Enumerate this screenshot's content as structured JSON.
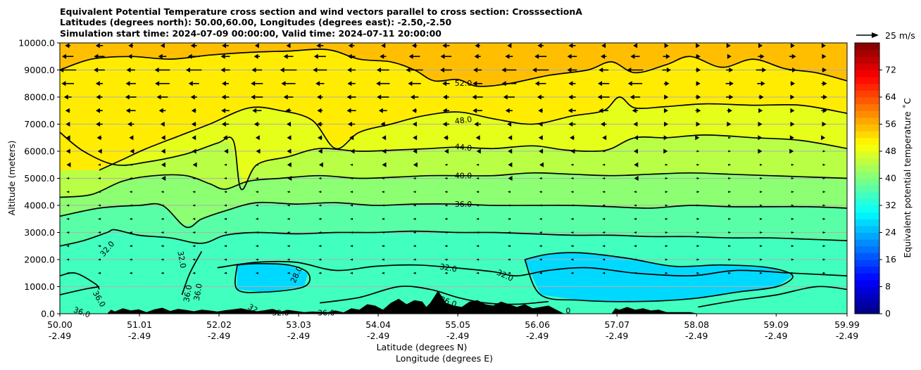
{
  "chart_data": {
    "type": "contour_cross_section",
    "title_lines": [
      "Equivalent Potential Temperature cross section and wind vectors parallel to cross section: CrosssectionA",
      "Latitudes (degrees north): 50.00,60.00, Longitudes (degrees east): -2.50,-2.50",
      "Simulation start time: 2024-07-09 00:00:00, Valid time: 2024-07-11 20:00:00"
    ],
    "ylabel": "Altitude (meters)",
    "xlabel_lat": "Latitude (degrees N)",
    "xlabel_lon": "Longitude (degrees E)",
    "ylim": [
      0,
      10000
    ],
    "yticks": [
      "0.0",
      "1000.0",
      "2000.0",
      "3000.0",
      "4000.0",
      "5000.0",
      "6000.0",
      "7000.0",
      "8000.0",
      "9000.0",
      "10000.0"
    ],
    "ytick_values": [
      0,
      1000,
      2000,
      3000,
      4000,
      5000,
      6000,
      7000,
      8000,
      9000,
      10000
    ],
    "xlim": [
      50.0,
      59.99
    ],
    "xtick_values": [
      50.0,
      51.01,
      52.02,
      53.03,
      54.04,
      55.05,
      56.06,
      57.07,
      58.08,
      59.09,
      59.99
    ],
    "xtick_lat": [
      "50.00",
      "51.01",
      "52.02",
      "53.03",
      "54.04",
      "55.05",
      "56.06",
      "57.07",
      "58.08",
      "59.09",
      "59.99"
    ],
    "xtick_lon": [
      "-2.49",
      "-2.49",
      "-2.49",
      "-2.49",
      "-2.49",
      "-2.49",
      "-2.49",
      "-2.49",
      "-2.49",
      "-2.49",
      "-2.49"
    ],
    "colorbar": {
      "label": "Equivalent potential temperature $^\\circ$C",
      "label_display": "Equivalent potential temperature ˚C",
      "ticks": [
        "0",
        "8",
        "16",
        "24",
        "32",
        "40",
        "48",
        "56",
        "64",
        "72"
      ],
      "tick_values": [
        0,
        8,
        16,
        24,
        32,
        40,
        48,
        56,
        64,
        72
      ],
      "range": [
        0,
        80
      ],
      "colormap": "jet"
    },
    "contour_levels": [
      28,
      32,
      36,
      40,
      44,
      48,
      52
    ],
    "contour_labels": [
      {
        "text": "52.0",
        "x": 55.12,
        "alt": 8520,
        "rot": 0
      },
      {
        "text": "48.0",
        "x": 55.12,
        "alt": 7150,
        "rot": -8
      },
      {
        "text": "44.0",
        "x": 55.12,
        "alt": 6150,
        "rot": 6
      },
      {
        "text": "40.0",
        "x": 55.12,
        "alt": 5100,
        "rot": 0
      },
      {
        "text": "36.0",
        "x": 55.12,
        "alt": 4050,
        "rot": 0
      },
      {
        "text": "32.0",
        "x": 54.93,
        "alt": 1700,
        "rot": 10
      },
      {
        "text": "32.0",
        "x": 55.65,
        "alt": 1420,
        "rot": 25
      },
      {
        "text": "28.0",
        "x": 53.0,
        "alt": 1450,
        "rot": -65
      },
      {
        "text": "36.0",
        "x": 54.93,
        "alt": 450,
        "rot": 20
      },
      {
        "text": "32.0",
        "x": 50.6,
        "alt": 2400,
        "rot": -50
      },
      {
        "text": "32.0",
        "x": 51.55,
        "alt": 2000,
        "rot": 80
      },
      {
        "text": "36.0",
        "x": 50.5,
        "alt": 550,
        "rot": 60
      },
      {
        "text": "36.0",
        "x": 50.28,
        "alt": 60,
        "rot": 20
      },
      {
        "text": "36.0",
        "x": 51.62,
        "alt": 750,
        "rot": -80
      },
      {
        "text": "36.0",
        "x": 51.75,
        "alt": 800,
        "rot": -80
      },
      {
        "text": "32",
        "x": 52.45,
        "alt": 200,
        "rot": 30
      },
      {
        "text": "32.0",
        "x": 52.8,
        "alt": 40,
        "rot": 0
      },
      {
        "text": "36.0",
        "x": 53.38,
        "alt": 40,
        "rot": 0
      },
      {
        "text": "0",
        "x": 56.45,
        "alt": 120,
        "rot": 0
      }
    ],
    "contours": [
      {
        "level": 52,
        "x": [
          50.0,
          50.4,
          50.9,
          51.4,
          51.9,
          52.4,
          52.9,
          53.4,
          53.8,
          54.2,
          54.5,
          54.75,
          55.05,
          55.3,
          55.7,
          56.2,
          56.7,
          57.0,
          57.3,
          57.7,
          58.0,
          58.4,
          58.8,
          59.2,
          59.6,
          59.99
        ],
        "alt": [
          9000,
          9400,
          9500,
          9400,
          9550,
          9650,
          9700,
          9750,
          9400,
          9300,
          9000,
          8600,
          8650,
          8400,
          8500,
          8800,
          9000,
          9300,
          8900,
          9200,
          9500,
          9100,
          9400,
          9050,
          8900,
          8600
        ]
      },
      {
        "level": 48,
        "x": [
          50.5,
          50.8,
          51.1,
          51.5,
          51.9,
          52.4,
          52.8,
          53.2,
          53.5,
          53.8,
          54.2,
          54.6,
          55.05,
          55.5,
          56.0,
          56.5,
          56.9,
          57.1,
          57.3,
          57.7,
          58.2,
          58.8,
          59.4,
          59.99
        ],
        "alt": [
          5300,
          5700,
          6100,
          6550,
          7000,
          7600,
          7500,
          7150,
          6100,
          6700,
          7000,
          7300,
          7450,
          7200,
          7000,
          7300,
          7500,
          8000,
          7600,
          7650,
          7750,
          7700,
          7700,
          7400
        ]
      },
      {
        "level": 44,
        "x": [
          50.0,
          50.3,
          50.7,
          51.1,
          51.6,
          52.0,
          52.2,
          52.3,
          52.5,
          52.9,
          53.3,
          53.8,
          54.3,
          54.7,
          55.05,
          55.5,
          56.0,
          56.4,
          56.8,
          57.0,
          57.3,
          57.7,
          58.2,
          58.8,
          59.4,
          59.99
        ],
        "alt": [
          6700,
          6000,
          5500,
          5600,
          5900,
          6300,
          6400,
          4600,
          5500,
          5800,
          6100,
          6000,
          6050,
          6100,
          6150,
          6100,
          6200,
          6050,
          6000,
          6100,
          6500,
          6500,
          6600,
          6500,
          6400,
          6100
        ]
      },
      {
        "level": 40,
        "x": [
          50.0,
          50.4,
          50.8,
          51.2,
          51.6,
          51.9,
          52.1,
          52.4,
          52.8,
          53.3,
          53.8,
          54.3,
          54.7,
          55.05,
          55.5,
          56.0,
          56.5,
          57.0,
          57.5,
          58.0,
          58.5,
          59.0,
          59.5,
          59.99
        ],
        "alt": [
          4300,
          4400,
          4900,
          5100,
          5100,
          4800,
          4600,
          4900,
          5000,
          5100,
          5000,
          5050,
          5100,
          5100,
          5100,
          5200,
          5150,
          5100,
          5150,
          5200,
          5150,
          5100,
          5050,
          5000
        ]
      },
      {
        "level": 36,
        "x": [
          50.0,
          50.5,
          51.0,
          51.3,
          51.6,
          51.8,
          52.1,
          52.5,
          53.0,
          53.5,
          54.0,
          54.5,
          55.05,
          55.5,
          56.0,
          56.5,
          57.0,
          57.5,
          58.0,
          58.5,
          59.0,
          59.5,
          59.99
        ],
        "alt": [
          3600,
          3900,
          4000,
          4000,
          3200,
          3500,
          3800,
          4100,
          4050,
          4100,
          4000,
          4050,
          4050,
          4000,
          4000,
          4000,
          3950,
          3900,
          4000,
          3950,
          3950,
          3950,
          3900
        ]
      },
      {
        "level": 32,
        "x": [
          50.0,
          50.3,
          50.6,
          50.7,
          51.0,
          51.4,
          51.8,
          52.1,
          52.5,
          53.0,
          53.5,
          54.0,
          54.5,
          55.05,
          55.5,
          56.0,
          56.5,
          57.0,
          57.5,
          58.0,
          58.5,
          59.0,
          59.5,
          59.99
        ],
        "alt": [
          2500,
          2700,
          3000,
          3100,
          2900,
          2800,
          2600,
          2900,
          3000,
          2950,
          3000,
          3000,
          3050,
          3000,
          3000,
          2950,
          2900,
          2900,
          2850,
          2850,
          2800,
          2800,
          2750,
          2700
        ]
      },
      {
        "level": 36,
        "x": [
          50.0,
          50.2,
          50.45,
          50.5
        ],
        "alt": [
          1400,
          1500,
          1100,
          900
        ]
      },
      {
        "level": 36,
        "x": [
          50.0,
          50.3,
          50.5
        ],
        "alt": [
          700,
          900,
          1000
        ]
      },
      {
        "level": 36,
        "x": [
          51.8,
          51.65,
          51.55
        ],
        "alt": [
          2300,
          1500,
          700
        ]
      },
      {
        "level": 28,
        "x": [
          52.25,
          52.5,
          52.9,
          53.15,
          53.1,
          52.6,
          52.25,
          52.25
        ],
        "alt": [
          1800,
          1850,
          1800,
          1500,
          1000,
          800,
          900,
          1800
        ]
      },
      {
        "level": 32,
        "x": [
          52.0,
          52.5,
          53.0,
          53.5,
          54.0,
          54.5,
          55.0,
          55.5,
          55.8,
          56.2,
          56.7,
          57.3,
          58.0,
          58.6,
          59.3,
          59.99
        ],
        "alt": [
          1700,
          1900,
          1900,
          1600,
          1750,
          1800,
          1700,
          1550,
          1400,
          1600,
          1700,
          1500,
          1400,
          1600,
          1500,
          1400
        ]
      },
      {
        "level": 28,
        "x": [
          55.9,
          56.2,
          56.6,
          57.2,
          57.8,
          58.4,
          59.0,
          59.3,
          59.1,
          58.6,
          58.0,
          57.3,
          56.6,
          56.1,
          55.9
        ],
        "alt": [
          2000,
          2200,
          2250,
          2050,
          1750,
          1800,
          1700,
          1400,
          1000,
          800,
          550,
          450,
          500,
          700,
          2000
        ]
      },
      {
        "level": 36,
        "x": [
          53.3,
          53.8,
          54.3,
          54.7,
          55.05,
          55.4,
          55.8,
          56.2
        ],
        "alt": [
          400,
          600,
          1000,
          900,
          600,
          400,
          350,
          450
        ]
      },
      {
        "level": 36,
        "x": [
          58.1,
          58.6,
          59.1,
          59.6,
          59.99
        ],
        "alt": [
          250,
          500,
          700,
          1000,
          900
        ]
      }
    ],
    "terrain": {
      "x": [
        50.0,
        50.6,
        50.65,
        50.7,
        50.8,
        50.9,
        51.0,
        51.1,
        51.2,
        51.3,
        51.4,
        51.5,
        51.6,
        51.7,
        51.8,
        51.9,
        52.0,
        52.1,
        52.2,
        52.3,
        52.4,
        52.5,
        52.6,
        52.7,
        52.8,
        52.9,
        53.0,
        53.1,
        53.2,
        53.3,
        53.4,
        53.5,
        53.6,
        53.7,
        53.8,
        53.9,
        54.0,
        54.1,
        54.2,
        54.3,
        54.4,
        54.5,
        54.6,
        54.65,
        54.7,
        54.8,
        54.9,
        55.0,
        55.1,
        55.2,
        55.3,
        55.4,
        55.5,
        55.6,
        55.7,
        55.8,
        55.9,
        56.0,
        56.1,
        56.2,
        56.4,
        57.0,
        57.05,
        57.1,
        57.2,
        57.3,
        57.4,
        57.5,
        57.6,
        57.7,
        58.0,
        58.1,
        59.99
      ],
      "alt": [
        0,
        0,
        150,
        80,
        200,
        120,
        160,
        60,
        160,
        220,
        100,
        180,
        140,
        90,
        150,
        120,
        80,
        130,
        160,
        200,
        140,
        90,
        130,
        180,
        80,
        140,
        100,
        60,
        80,
        70,
        60,
        120,
        50,
        200,
        150,
        350,
        300,
        150,
        400,
        550,
        350,
        500,
        450,
        250,
        400,
        850,
        400,
        300,
        250,
        450,
        500,
        350,
        300,
        450,
        350,
        250,
        350,
        200,
        250,
        300,
        0,
        0,
        200,
        150,
        250,
        150,
        200,
        120,
        150,
        60,
        60,
        0,
        0
      ]
    },
    "wind_vectors": {
      "scale_label": "25 m/s",
      "scale_speed": 25,
      "heights": [
        9900,
        9500,
        9000,
        8500,
        8000,
        7500,
        7000,
        6500,
        6000,
        5500,
        5000,
        4500,
        4000,
        3500,
        3000,
        2500,
        2000,
        1500
      ],
      "columns": [
        50.1,
        50.5,
        50.9,
        51.3,
        51.7,
        52.1,
        52.5,
        52.9,
        53.3,
        53.7,
        54.1,
        54.5,
        54.9,
        55.3,
        55.7,
        56.1,
        56.5,
        56.9,
        57.3,
        57.7,
        58.1,
        58.5,
        58.9,
        59.3,
        59.7
      ],
      "u_profile": [
        -6,
        -10,
        -14,
        -12,
        -10,
        -8,
        -6,
        -4,
        -3,
        -2,
        -1.5,
        -1,
        -1,
        -0.8,
        -0.5,
        -0.5,
        -0.5,
        -0.5
      ]
    }
  }
}
